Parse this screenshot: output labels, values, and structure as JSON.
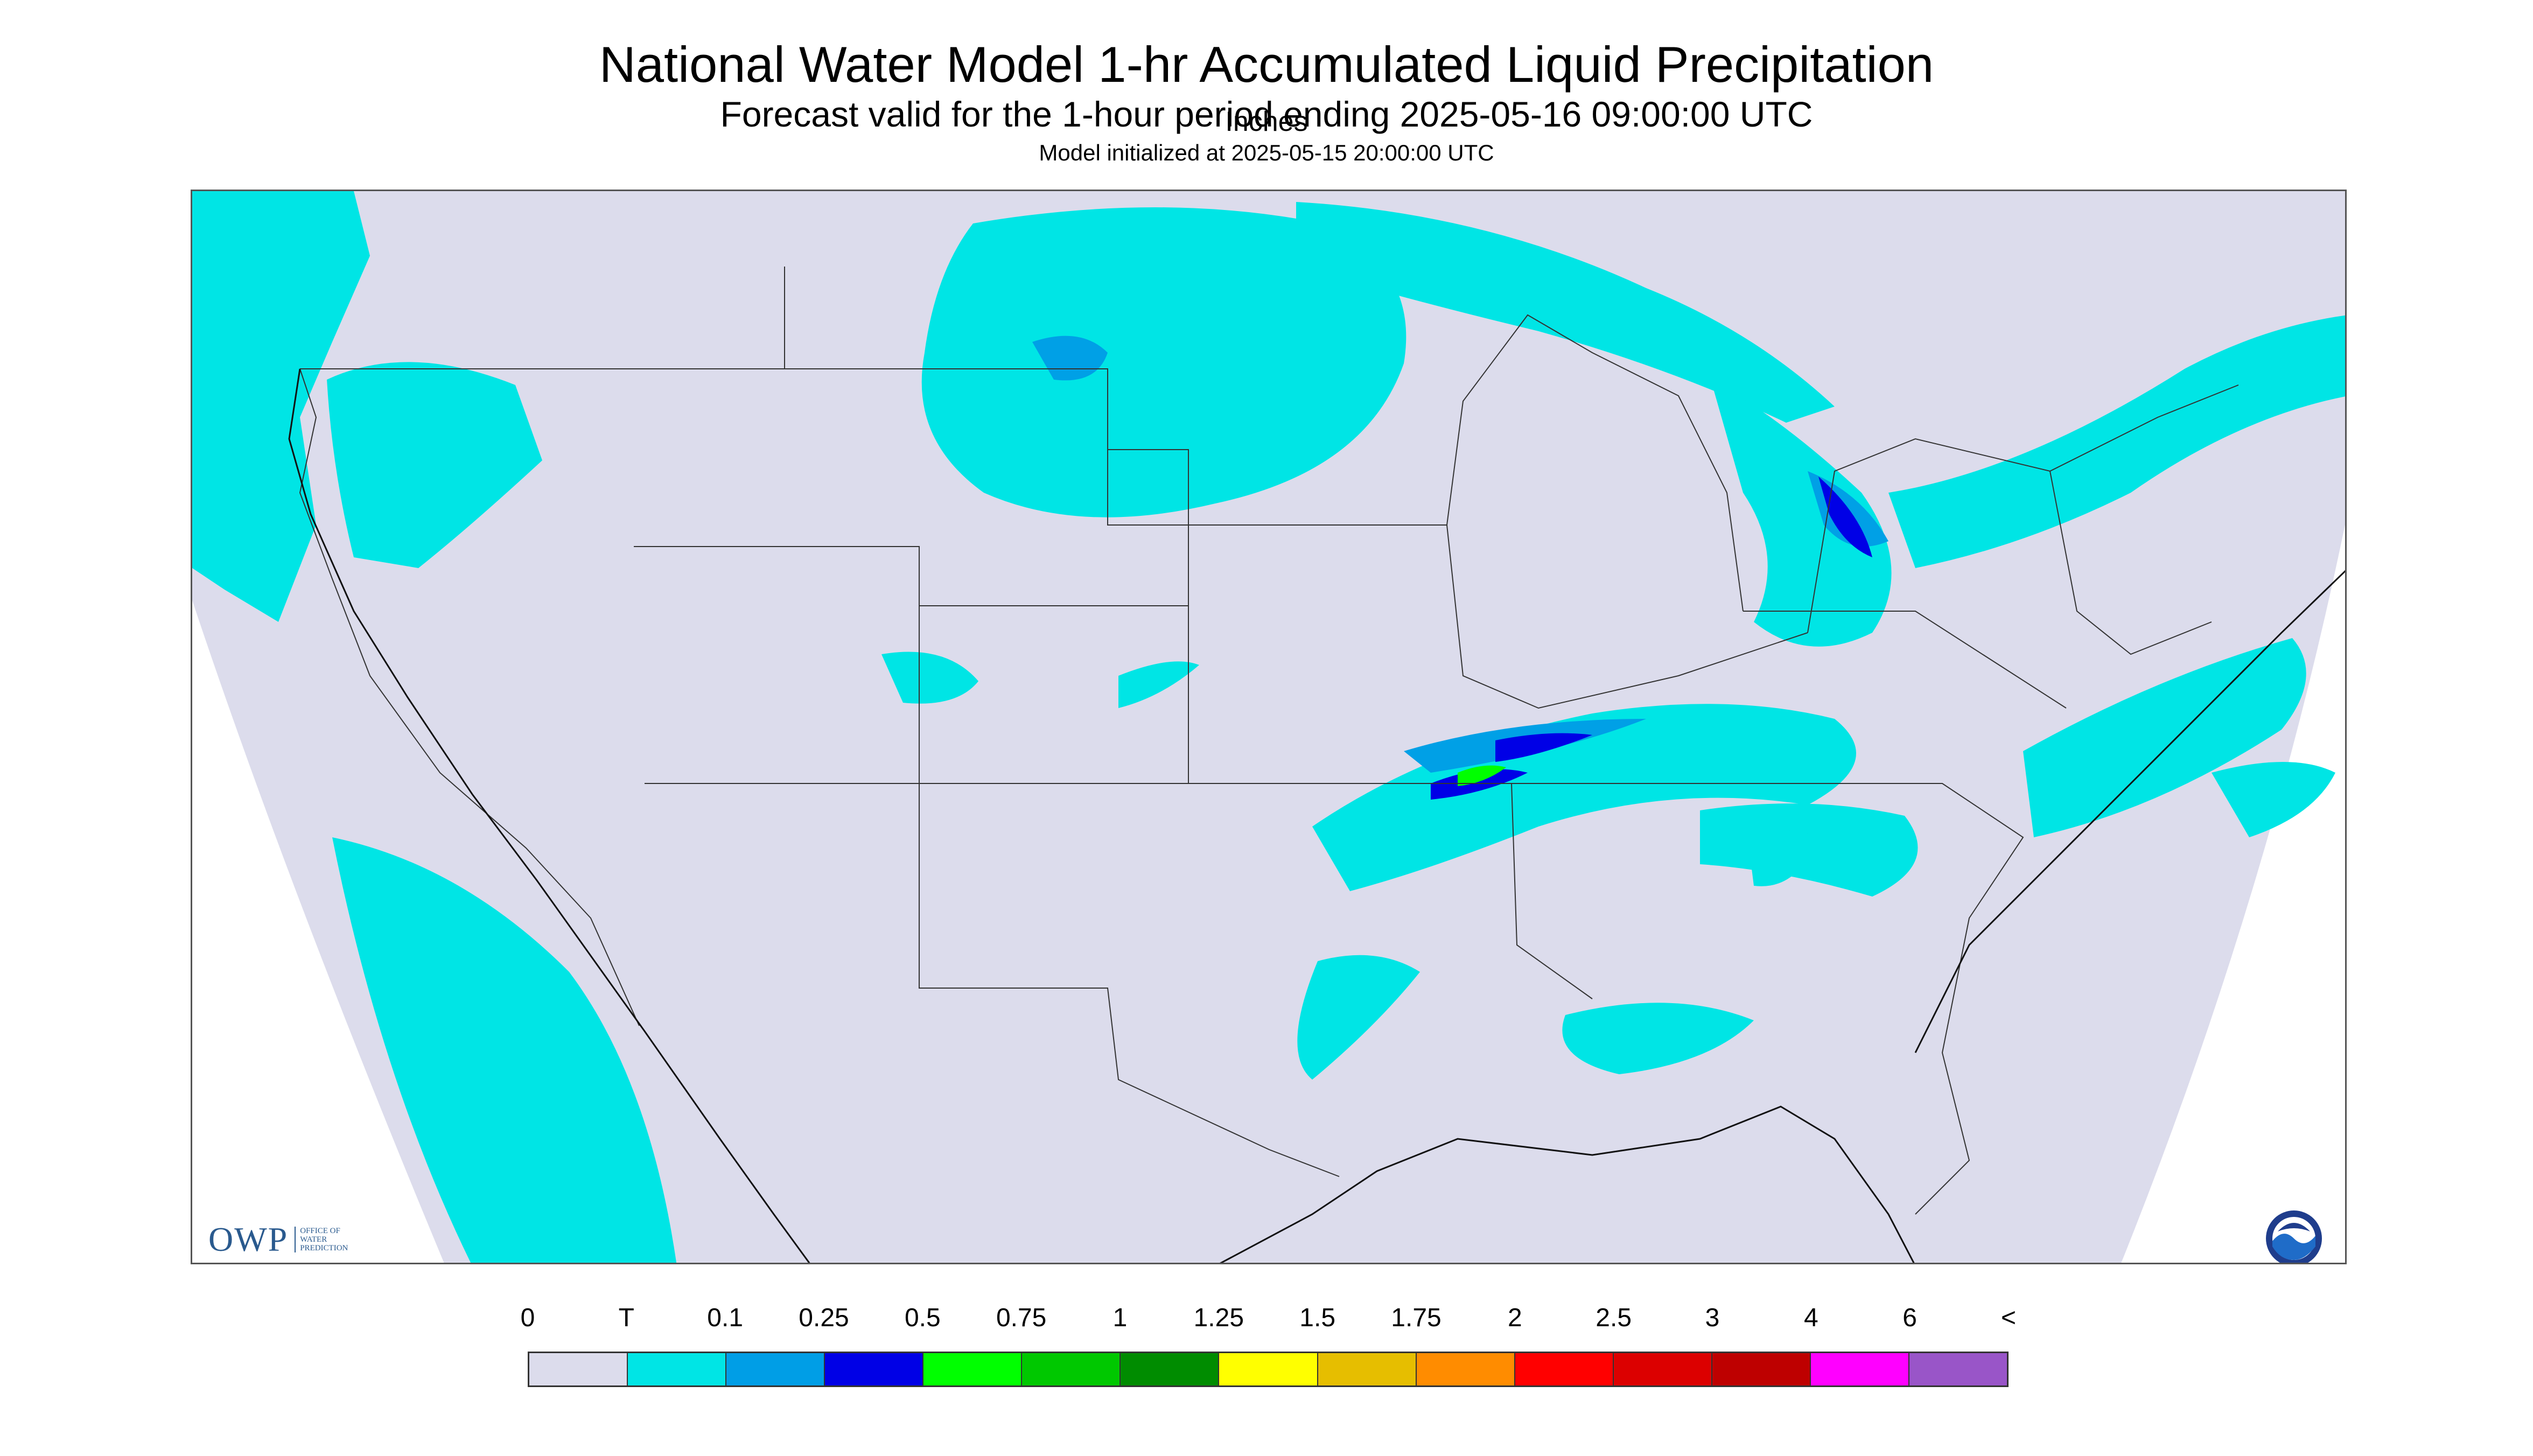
{
  "header": {
    "title": "National Water Model 1-hr Accumulated Liquid Precipitation",
    "subtitle": "Forecast valid for the 1-hour period ending 2025-05-16 09:00:00 UTC",
    "init": "Model initialized at 2025-05-15 20:00:00 UTC"
  },
  "map": {
    "background_color": "#dcdcec",
    "trace_color": "#00e5e5",
    "light_color": "#00a0e6",
    "med_color": "#0000e6"
  },
  "logos": {
    "owp_mark": "OWP",
    "owp_text": [
      "OFFICE OF",
      "WATER",
      "PREDICTION"
    ],
    "noaa_icon": "noaa-logo-icon"
  },
  "legend": {
    "labels": [
      "0",
      "T",
      "0.1",
      "0.25",
      "0.5",
      "0.75",
      "1",
      "1.25",
      "1.5",
      "1.75",
      "2",
      "2.5",
      "3",
      "4",
      "6",
      "<"
    ],
    "colors": [
      "#dcdcec",
      "#00e5e5",
      "#009ee6",
      "#0000e6",
      "#00ff00",
      "#00c800",
      "#008c00",
      "#ffff00",
      "#e6be00",
      "#ff8c00",
      "#ff0000",
      "#dc0000",
      "#be0000",
      "#ff00ff",
      "#9955c8"
    ],
    "units": "Inches"
  }
}
